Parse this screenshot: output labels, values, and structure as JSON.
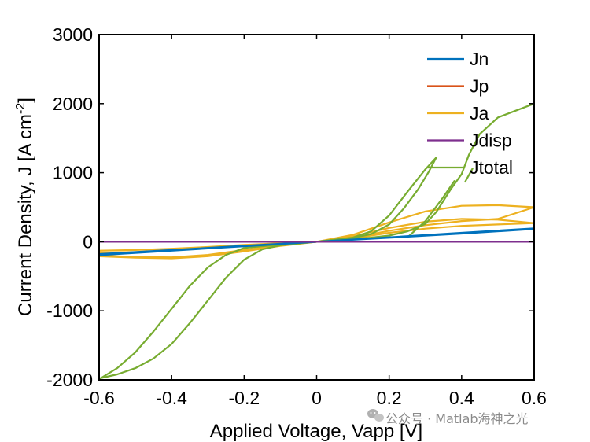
{
  "chart_data": {
    "type": "line",
    "title": "",
    "xlabel": "Applied Voltage, Vapp [V]",
    "ylabel_main": "Current Density, J [A cm",
    "ylabel_sup": "-2",
    "ylabel_end": "]",
    "xlim": [
      -0.6,
      0.6
    ],
    "ylim": [
      -2000,
      3000
    ],
    "xticks": [
      -0.6,
      -0.4,
      -0.2,
      0,
      0.2,
      0.4,
      0.6
    ],
    "xtick_labels": [
      "-0.6",
      "-0.4",
      "-0.2",
      "0",
      "0.2",
      "0.4",
      "0.6"
    ],
    "yticks": [
      -2000,
      -1000,
      0,
      1000,
      2000,
      3000
    ],
    "ytick_labels": [
      "-2000",
      "-1000",
      "0",
      "1000",
      "2000",
      "3000"
    ],
    "grid": false,
    "legend_position": "top-right",
    "series": [
      {
        "name": "Jn",
        "color": "#0072BD",
        "loops": [
          [
            [
              -0.6,
              -180
            ],
            [
              -0.4,
              -120
            ],
            [
              -0.2,
              -60
            ],
            [
              0,
              0
            ],
            [
              0.2,
              60
            ],
            [
              0.4,
              120
            ],
            [
              0.6,
              185
            ],
            [
              0.4,
              118
            ],
            [
              0.2,
              58
            ],
            [
              0,
              0
            ],
            [
              -0.2,
              -58
            ],
            [
              -0.4,
              -118
            ],
            [
              -0.6,
              -178
            ]
          ],
          [
            [
              -0.6,
              -195
            ],
            [
              -0.4,
              -130
            ],
            [
              -0.2,
              -65
            ],
            [
              0,
              0
            ],
            [
              0.2,
              65
            ],
            [
              0.4,
              130
            ],
            [
              0.6,
              195
            ]
          ]
        ]
      },
      {
        "name": "Jp",
        "color": "#D95319",
        "loops": [
          [
            [
              -0.6,
              0
            ],
            [
              0,
              0
            ],
            [
              0.6,
              0
            ]
          ]
        ]
      },
      {
        "name": "Ja",
        "color": "#EDB120",
        "loops": [
          [
            [
              -0.6,
              -130
            ],
            [
              -0.5,
              -120
            ],
            [
              -0.4,
              -100
            ],
            [
              -0.3,
              -75
            ],
            [
              -0.2,
              -45
            ],
            [
              -0.1,
              -20
            ],
            [
              0,
              0
            ],
            [
              0.1,
              100
            ],
            [
              0.2,
              280
            ],
            [
              0.3,
              440
            ],
            [
              0.4,
              520
            ],
            [
              0.5,
              530
            ],
            [
              0.6,
              500
            ]
          ],
          [
            [
              0.6,
              500
            ],
            [
              0.5,
              330
            ],
            [
              0.4,
              300
            ],
            [
              0.3,
              240
            ],
            [
              0.2,
              160
            ],
            [
              0.1,
              60
            ],
            [
              0,
              0
            ],
            [
              -0.1,
              -50
            ],
            [
              -0.2,
              -120
            ],
            [
              -0.3,
              -190
            ],
            [
              -0.4,
              -225
            ],
            [
              -0.5,
              -220
            ],
            [
              -0.6,
              -200
            ]
          ],
          [
            [
              -0.6,
              -160
            ],
            [
              -0.5,
              -150
            ],
            [
              -0.4,
              -125
            ],
            [
              -0.3,
              -90
            ],
            [
              -0.2,
              -55
            ],
            [
              -0.1,
              -25
            ],
            [
              0,
              0
            ],
            [
              0.1,
              80
            ],
            [
              0.2,
              200
            ],
            [
              0.3,
              290
            ],
            [
              0.4,
              330
            ],
            [
              0.5,
              320
            ],
            [
              0.6,
              270
            ]
          ],
          [
            [
              0.6,
              270
            ],
            [
              0.5,
              250
            ],
            [
              0.4,
              230
            ],
            [
              0.3,
              190
            ],
            [
              0.2,
              130
            ],
            [
              0.1,
              50
            ],
            [
              0,
              0
            ],
            [
              -0.1,
              -60
            ],
            [
              -0.2,
              -140
            ],
            [
              -0.3,
              -210
            ],
            [
              -0.4,
              -240
            ],
            [
              -0.5,
              -230
            ],
            [
              -0.6,
              -210
            ]
          ]
        ]
      },
      {
        "name": "Jdisp",
        "color": "#7E2F8E",
        "loops": [
          [
            [
              -0.6,
              0
            ],
            [
              0,
              0
            ],
            [
              0.6,
              0
            ]
          ]
        ]
      },
      {
        "name": "Jtotal",
        "color": "#77AC30",
        "loops": [
          [
            [
              -0.6,
              -1990
            ],
            [
              -0.55,
              -1830
            ],
            [
              -0.5,
              -1600
            ],
            [
              -0.45,
              -1300
            ],
            [
              -0.4,
              -970
            ],
            [
              -0.35,
              -640
            ],
            [
              -0.3,
              -370
            ],
            [
              -0.25,
              -190
            ],
            [
              -0.2,
              -90
            ],
            [
              -0.1,
              -40
            ],
            [
              0,
              0
            ],
            [
              0.1,
              60
            ],
            [
              0.15,
              150
            ],
            [
              0.2,
              380
            ],
            [
              0.25,
              720
            ],
            [
              0.3,
              1050
            ],
            [
              0.33,
              1220
            ]
          ],
          [
            [
              0.33,
              1220
            ],
            [
              0.31,
              1020
            ],
            [
              0.28,
              760
            ],
            [
              0.24,
              480
            ],
            [
              0.2,
              250
            ],
            [
              0.15,
              110
            ],
            [
              0.1,
              55
            ],
            [
              0,
              0
            ],
            [
              -0.1,
              -50
            ],
            [
              -0.15,
              -110
            ],
            [
              -0.2,
              -260
            ],
            [
              -0.25,
              -520
            ],
            [
              -0.3,
              -850
            ],
            [
              -0.35,
              -1180
            ],
            [
              -0.4,
              -1480
            ],
            [
              -0.45,
              -1690
            ],
            [
              -0.5,
              -1830
            ],
            [
              -0.55,
              -1920
            ],
            [
              -0.6,
              -1980
            ]
          ],
          [
            [
              0.6,
              2000
            ],
            [
              0.5,
              1800
            ],
            [
              0.45,
              1560
            ],
            [
              0.42,
              1260
            ],
            [
              0.4,
              980
            ],
            [
              0.37,
              760
            ],
            [
              0.33,
              430
            ],
            [
              0.3,
              260
            ],
            [
              0.25,
              150
            ],
            [
              0.2,
              90
            ],
            [
              0.15,
              60
            ],
            [
              0.1,
              40
            ],
            [
              0,
              0
            ]
          ],
          [
            [
              0.25,
              60
            ],
            [
              0.3,
              300
            ],
            [
              0.35,
              650
            ],
            [
              0.38,
              880
            ]
          ],
          [
            [
              0.41,
              870
            ],
            [
              0.43,
              1060
            ]
          ]
        ]
      }
    ],
    "legend": [
      "Jn",
      "Jp",
      "Ja",
      "Jdisp",
      "Jtotal"
    ]
  },
  "watermark": {
    "icon": "wechat-icon",
    "text": "公众号 · Matlab海神之光"
  }
}
